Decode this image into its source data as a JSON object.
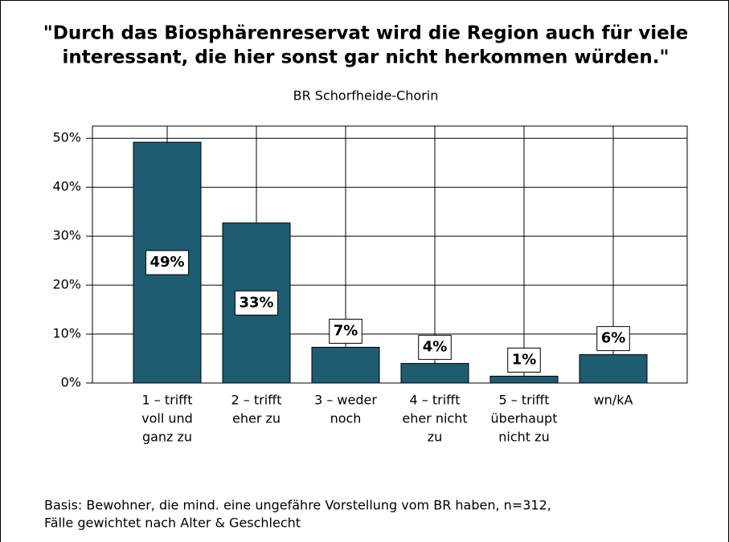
{
  "chart_data": {
    "type": "bar",
    "title": [
      "\"Durch das Biosphärenreservat wird die Region auch für viele",
      "interessant, die hier sonst gar nicht herkommen würden.\""
    ],
    "subtitle": "BR Schorfheide-Chorin",
    "categories": [
      [
        "1 – trifft",
        "voll und",
        "ganz zu"
      ],
      [
        "2 – trifft",
        "eher zu"
      ],
      [
        "3 – weder",
        "noch"
      ],
      [
        "4 – trifft",
        "eher nicht",
        "zu"
      ],
      [
        "5 – trifft",
        "überhaupt",
        "nicht zu"
      ],
      [
        "wn/kA"
      ]
    ],
    "values": [
      49.2,
      32.7,
      7.3,
      4.0,
      1.4,
      5.8
    ],
    "value_labels": [
      "49%",
      "33%",
      "7%",
      "4%",
      "1%",
      "6%"
    ],
    "color": "#1e5c72",
    "ylim": [
      0,
      52.5
    ],
    "yticks": [
      {
        "value": 0,
        "label": "0%"
      },
      {
        "value": 10,
        "label": "10%"
      },
      {
        "value": 20,
        "label": "20%"
      },
      {
        "value": 30,
        "label": "30%"
      },
      {
        "value": 40,
        "label": "40%"
      },
      {
        "value": 50,
        "label": "50%"
      }
    ],
    "grid": true,
    "notes": [
      "Basis: Bewohner, die mind. eine ungefähre Vorstellung vom BR haben, n=312,",
      "Fälle gewichtet nach Alter & Geschlecht"
    ]
  }
}
